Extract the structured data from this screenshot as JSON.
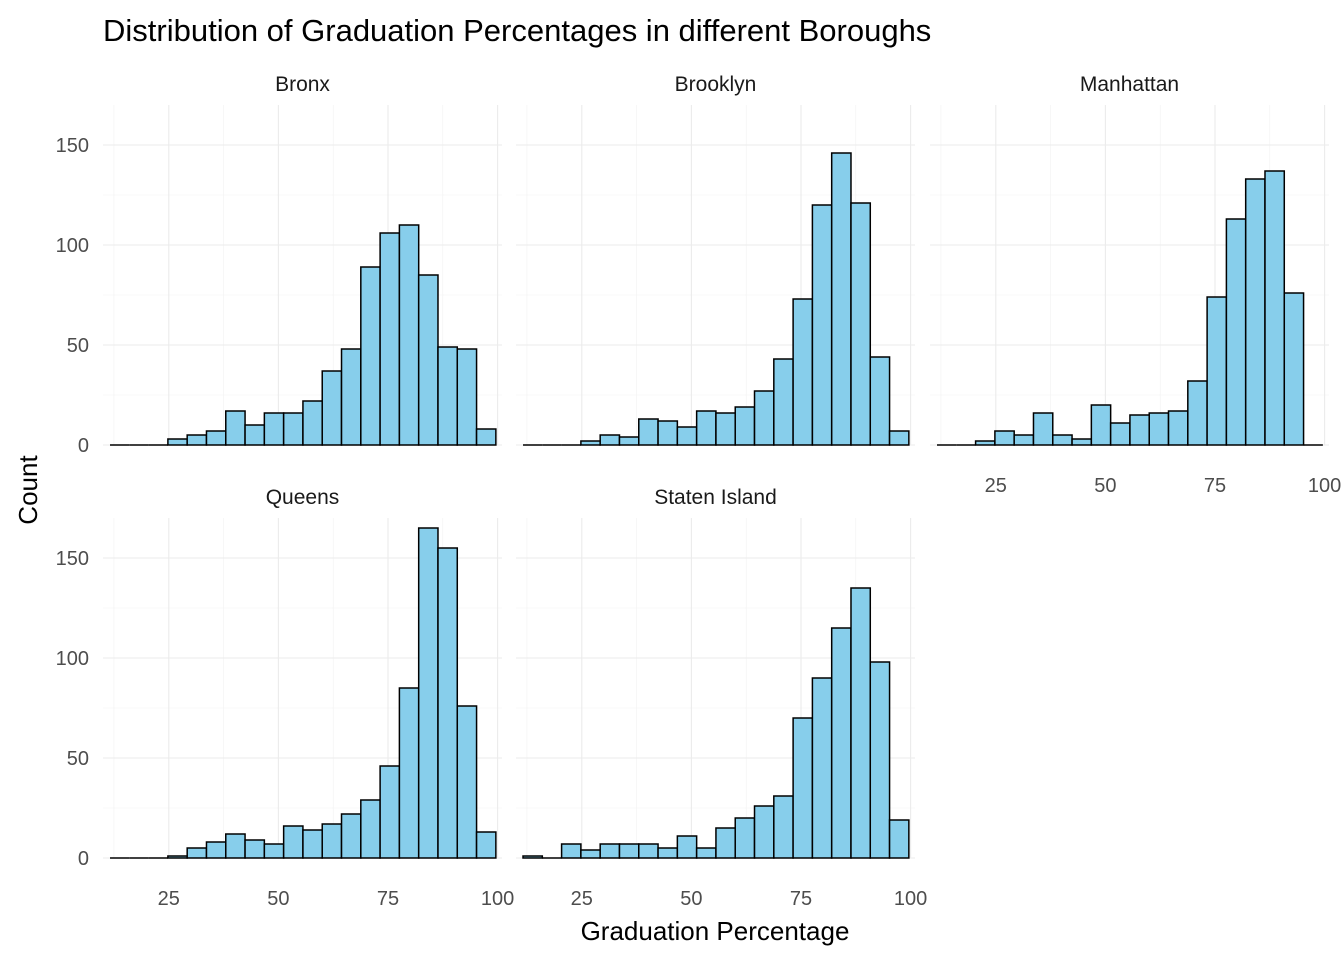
{
  "chart_data": {
    "type": "bar",
    "title": "Distribution of Graduation Percentages in different Boroughs",
    "xlabel": "Graduation Percentage",
    "ylabel": "Count",
    "xlim": [
      10.0,
      101.0
    ],
    "ylim": [
      0,
      170
    ],
    "x_ticks": [
      25,
      50,
      75,
      100
    ],
    "y_ticks": [
      0,
      50,
      100,
      150
    ],
    "grid": true,
    "bin_width": 4.4,
    "bin_start": 11.6,
    "fill_color": "#87CEEB",
    "outline_color": "#000000",
    "panels": [
      {
        "name": "Bronx",
        "values": [
          0,
          0,
          0,
          3,
          5,
          7,
          17,
          10,
          16,
          16,
          22,
          37,
          48,
          89,
          106,
          110,
          85,
          49,
          48,
          8
        ]
      },
      {
        "name": "Brooklyn",
        "values": [
          0,
          0,
          0,
          2,
          5,
          4,
          13,
          12,
          9,
          17,
          16,
          19,
          27,
          43,
          73,
          120,
          146,
          121,
          44,
          7
        ]
      },
      {
        "name": "Manhattan",
        "values": [
          0,
          0,
          2,
          7,
          5,
          16,
          5,
          3,
          20,
          11,
          15,
          16,
          17,
          32,
          74,
          113,
          133,
          137,
          76,
          0
        ]
      },
      {
        "name": "Queens",
        "values": [
          0,
          0,
          0,
          1,
          5,
          8,
          12,
          9,
          7,
          16,
          14,
          17,
          22,
          29,
          46,
          85,
          165,
          155,
          76,
          13
        ]
      },
      {
        "name": "Staten Island",
        "values": [
          1,
          0,
          7,
          4,
          7,
          7,
          7,
          5,
          11,
          5,
          15,
          20,
          26,
          31,
          70,
          90,
          115,
          135,
          98,
          19
        ]
      }
    ]
  }
}
